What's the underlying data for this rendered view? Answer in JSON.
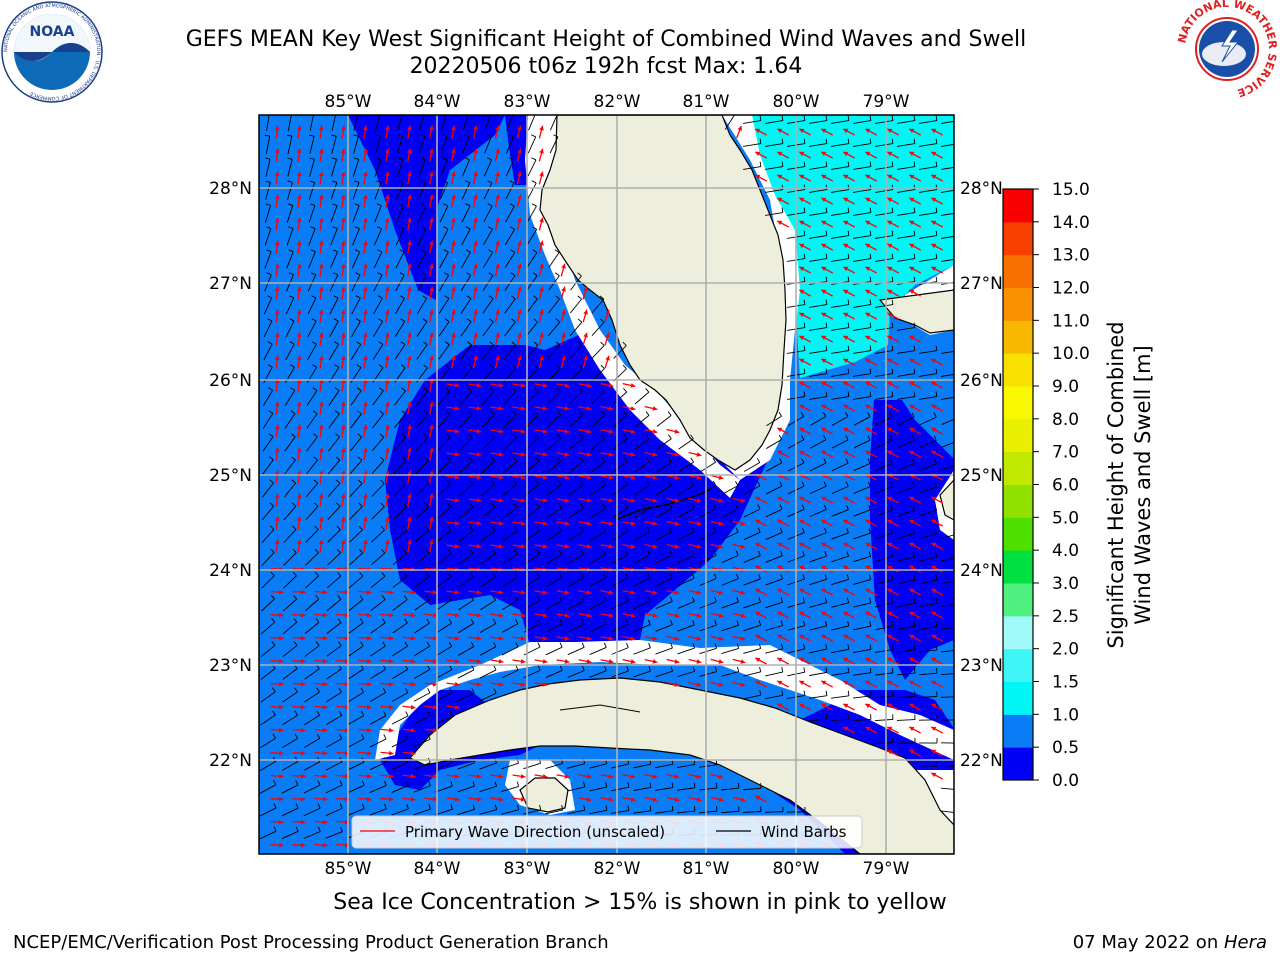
{
  "header": {
    "title_line1": "GEFS MEAN Key West Significant Height of Combined Wind Waves and Swell",
    "title_line2": "20220506 t06z 192h fcst   Max: 1.64"
  },
  "map": {
    "lon_labels": [
      "85°W",
      "84°W",
      "83°W",
      "82°W",
      "81°W",
      "80°W",
      "79°W"
    ],
    "lat_labels": [
      "28°N",
      "27°N",
      "26°N",
      "25°N",
      "24°N",
      "23°N",
      "22°N"
    ],
    "legend": {
      "wave_direction_label": "Primary Wave Direction (unscaled)",
      "wind_barbs_label": "Wind Barbs"
    },
    "colors": {
      "land": "#eeeedc",
      "range_0_0_5": "#0000f5",
      "range_0_5_1": "#0a7cf5",
      "range_1_1_5": "#00f5f5",
      "wave_arrow": "#ff0000",
      "grid": "#b0b0b0"
    }
  },
  "colorbar": {
    "label_line1": "Significant Height of Combined",
    "label_line2": "Wind Waves and Swell [m]",
    "ticks": [
      "0.0",
      "0.5",
      "1.0",
      "1.5",
      "2.0",
      "2.5",
      "3.0",
      "4.0",
      "5.0",
      "6.0",
      "7.0",
      "8.0",
      "9.0",
      "10.0",
      "11.0",
      "12.0",
      "13.0",
      "14.0",
      "15.0"
    ],
    "colors": [
      "#0000f5",
      "#0a7cf5",
      "#00f5f5",
      "#40f5f5",
      "#a0fafa",
      "#50f080",
      "#00e040",
      "#50e000",
      "#90e000",
      "#c0e800",
      "#e8f000",
      "#f8f800",
      "#f8e000",
      "#f8b800",
      "#f89000",
      "#f87000",
      "#f84000",
      "#f80000"
    ]
  },
  "footer": {
    "subtitle": "Sea Ice Concentration > 15% is shown in pink to yellow",
    "left": "NCEP/EMC/Verification Post Processing Product Generation Branch",
    "right_prefix": "07 May 2022 on ",
    "right_host": "Hera"
  },
  "logos": {
    "noaa_text": "NOAA",
    "noaa_ring": "NATIONAL OCEANIC AND ATMOSPHERIC ADMINISTRATION · U.S. DEPARTMENT OF COMMERCE",
    "nws_ring": "NATIONAL WEATHER SERVICE"
  }
}
